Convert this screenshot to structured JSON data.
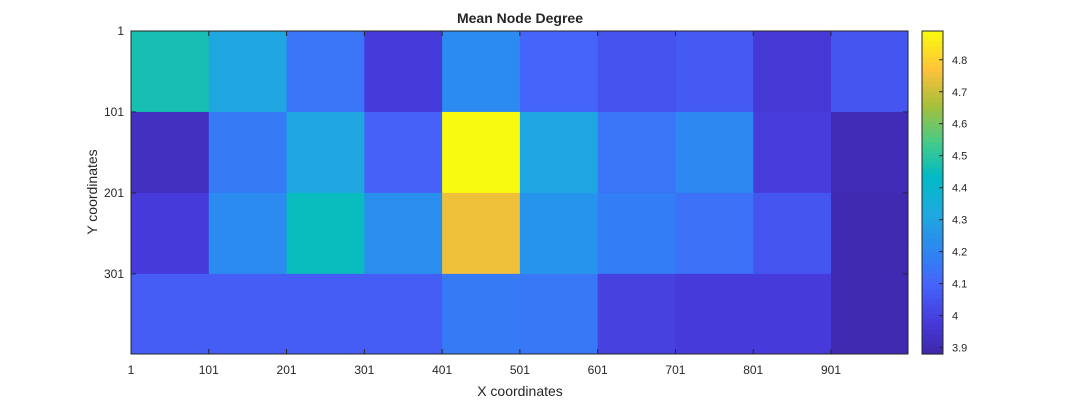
{
  "chart_data": {
    "type": "heatmap",
    "title": "Mean Node Degree",
    "xlabel": "X coordinates",
    "ylabel": "Y coordinates",
    "x_ticks": [
      "1",
      "101",
      "201",
      "301",
      "401",
      "501",
      "601",
      "701",
      "801",
      "901"
    ],
    "y_ticks": [
      "1",
      "101",
      "201",
      "301"
    ],
    "x_range": [
      1,
      1000
    ],
    "y_range": [
      1,
      400
    ],
    "y_direction": "top-to-bottom",
    "cell_size": 100,
    "colormap": "parula",
    "colorbar": {
      "placement": "right",
      "clim": [
        3.88,
        4.89
      ],
      "ticks": [
        3.9,
        4.0,
        4.1,
        4.2,
        4.3,
        4.4,
        4.5,
        4.6,
        4.7,
        4.8
      ],
      "tick_labels": [
        "3.9",
        "4",
        "4.1",
        "4.2",
        "4.3",
        "4.4",
        "4.5",
        "4.6",
        "4.7",
        "4.8"
      ]
    },
    "values": [
      [
        4.47,
        4.31,
        4.15,
        3.98,
        4.22,
        4.1,
        4.05,
        4.07,
        3.97,
        4.06
      ],
      [
        3.93,
        4.17,
        4.31,
        4.09,
        4.89,
        4.31,
        4.15,
        4.21,
        3.99,
        3.91
      ],
      [
        3.98,
        4.22,
        4.45,
        4.23,
        4.75,
        4.25,
        4.18,
        4.14,
        4.06,
        3.9
      ],
      [
        4.08,
        4.08,
        4.08,
        4.08,
        4.17,
        4.16,
        4.0,
        3.98,
        3.98,
        3.9
      ]
    ]
  }
}
